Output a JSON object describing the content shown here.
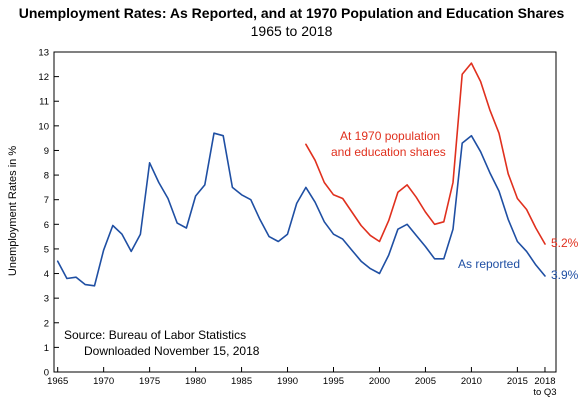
{
  "chart_data": {
    "type": "line",
    "title": "Unemployment Rates:  As Reported, and at 1970 Population and Education Shares",
    "subtitle": "1965 to 2018",
    "ylabel": "Unemployment Rates in %",
    "xlabel": "",
    "xlim": [
      1964.6,
      2019.2
    ],
    "ylim": [
      0,
      13
    ],
    "yticks": [
      0,
      1,
      2,
      3,
      4,
      5,
      6,
      7,
      8,
      9,
      10,
      11,
      12,
      13
    ],
    "xticks": [
      {
        "value": 1965,
        "label": "1965"
      },
      {
        "value": 1970,
        "label": "1970"
      },
      {
        "value": 1975,
        "label": "1975"
      },
      {
        "value": 1980,
        "label": "1980"
      },
      {
        "value": 1985,
        "label": "1985"
      },
      {
        "value": 1990,
        "label": "1990"
      },
      {
        "value": 1995,
        "label": "1995"
      },
      {
        "value": 2000,
        "label": "2000"
      },
      {
        "value": 2005,
        "label": "2005"
      },
      {
        "value": 2010,
        "label": "2010"
      },
      {
        "value": 2015,
        "label": "2015"
      },
      {
        "value": 2018,
        "label": "2018",
        "label2": "to Q3"
      }
    ],
    "grid": false,
    "series": [
      {
        "name": "As reported",
        "color": "#1f4fa3",
        "end_label": "3.9%",
        "x": [
          1965,
          1966,
          1967,
          1968,
          1969,
          1970,
          1971,
          1972,
          1973,
          1974,
          1975,
          1976,
          1977,
          1978,
          1979,
          1980,
          1981,
          1982,
          1983,
          1984,
          1985,
          1986,
          1987,
          1988,
          1989,
          1990,
          1991,
          1992,
          1993,
          1994,
          1995,
          1996,
          1997,
          1998,
          1999,
          2000,
          2001,
          2002,
          2003,
          2004,
          2005,
          2006,
          2007,
          2008,
          2009,
          2010,
          2011,
          2012,
          2013,
          2014,
          2015,
          2016,
          2017,
          2018
        ],
        "values": [
          4.5,
          3.8,
          3.85,
          3.55,
          3.5,
          4.95,
          5.95,
          5.6,
          4.9,
          5.6,
          8.5,
          7.7,
          7.05,
          6.05,
          5.85,
          7.15,
          7.6,
          9.7,
          9.6,
          7.5,
          7.2,
          7.0,
          6.2,
          5.5,
          5.3,
          5.6,
          6.85,
          7.5,
          6.9,
          6.1,
          5.6,
          5.4,
          4.95,
          4.5,
          4.2,
          4.0,
          4.75,
          5.8,
          6.0,
          5.55,
          5.1,
          4.6,
          4.6,
          5.8,
          9.3,
          9.6,
          8.95,
          8.1,
          7.35,
          6.2,
          5.3,
          4.9,
          4.35,
          3.9
        ]
      },
      {
        "name": "At 1970 population and education shares",
        "color": "#e0301e",
        "end_label": "5.2%",
        "x": [
          1992,
          1993,
          1994,
          1995,
          1996,
          1997,
          1998,
          1999,
          2000,
          2001,
          2002,
          2003,
          2004,
          2005,
          2006,
          2007,
          2008,
          2009,
          2010,
          2011,
          2012,
          2013,
          2014,
          2015,
          2016,
          2017,
          2018
        ],
        "values": [
          9.25,
          8.6,
          7.7,
          7.2,
          7.05,
          6.5,
          5.95,
          5.55,
          5.3,
          6.15,
          7.3,
          7.6,
          7.1,
          6.5,
          6.0,
          6.1,
          7.7,
          12.1,
          12.55,
          11.8,
          10.65,
          9.7,
          8.05,
          7.05,
          6.6,
          5.85,
          5.2
        ]
      }
    ],
    "annotations": {
      "red_label_line1": "At 1970 population",
      "red_label_line2": "and education shares",
      "blue_label": "As reported",
      "source_line1": "Source:  Bureau of Labor Statistics",
      "source_line2": "Downloaded November 15, 2018"
    }
  }
}
